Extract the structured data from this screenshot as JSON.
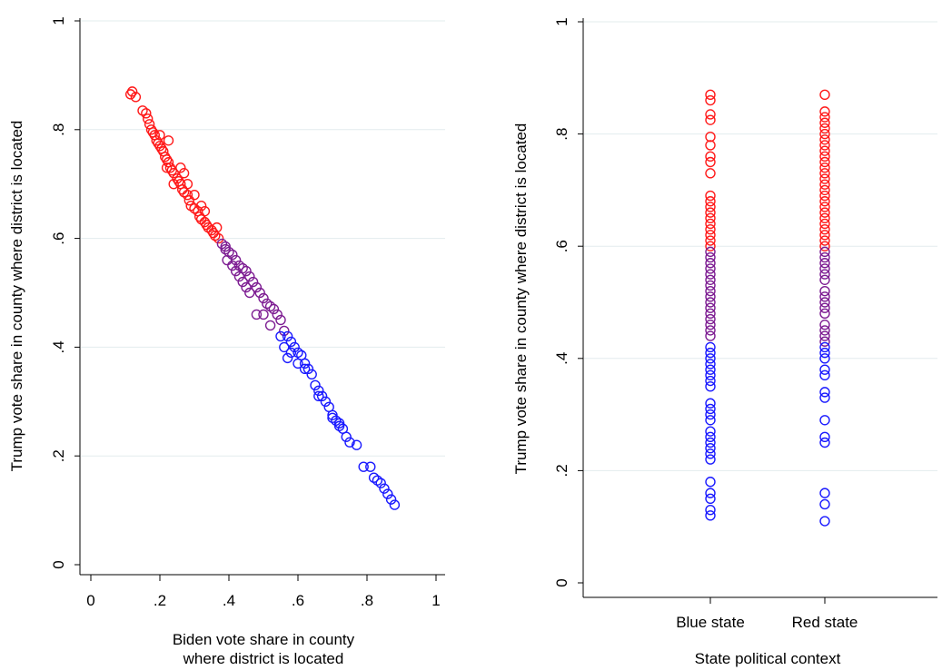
{
  "chart_data": [
    {
      "type": "scatter",
      "panel": "left",
      "xlabel_lines": [
        "Biden vote share in county",
        "where district is located"
      ],
      "ylabel": "Trump vote share in county where district is located",
      "xlim": [
        0,
        1
      ],
      "ylim": [
        0,
        1
      ],
      "xticks": [
        0,
        0.2,
        0.4,
        0.6,
        0.8,
        1
      ],
      "xtick_labels": [
        "0",
        ".2",
        ".4",
        ".6",
        ".8",
        "1"
      ],
      "yticks": [
        0,
        0.2,
        0.4,
        0.6,
        0.8,
        1
      ],
      "ytick_labels": [
        "0",
        ".2",
        ".4",
        ".6",
        ".8",
        "1"
      ],
      "grid": "horizontal",
      "marker": "hollow-circle",
      "color_rule": {
        "red_above": 0.6,
        "purple_between": [
          0.43,
          0.6
        ],
        "blue_below": 0.43
      },
      "colors": {
        "red": "#ff1a1a",
        "purple": "#7d1d92",
        "blue": "#1a1aff"
      },
      "points": [
        [
          0.12,
          0.87
        ],
        [
          0.13,
          0.86
        ],
        [
          0.115,
          0.865
        ],
        [
          0.15,
          0.835
        ],
        [
          0.16,
          0.83
        ],
        [
          0.165,
          0.82
        ],
        [
          0.17,
          0.81
        ],
        [
          0.175,
          0.8
        ],
        [
          0.18,
          0.795
        ],
        [
          0.185,
          0.79
        ],
        [
          0.19,
          0.78
        ],
        [
          0.195,
          0.775
        ],
        [
          0.2,
          0.77
        ],
        [
          0.205,
          0.765
        ],
        [
          0.21,
          0.76
        ],
        [
          0.215,
          0.75
        ],
        [
          0.22,
          0.745
        ],
        [
          0.225,
          0.74
        ],
        [
          0.23,
          0.73
        ],
        [
          0.235,
          0.725
        ],
        [
          0.24,
          0.72
        ],
        [
          0.25,
          0.71
        ],
        [
          0.255,
          0.705
        ],
        [
          0.26,
          0.7
        ],
        [
          0.265,
          0.69
        ],
        [
          0.27,
          0.685
        ],
        [
          0.28,
          0.68
        ],
        [
          0.285,
          0.67
        ],
        [
          0.29,
          0.66
        ],
        [
          0.3,
          0.655
        ],
        [
          0.31,
          0.65
        ],
        [
          0.315,
          0.64
        ],
        [
          0.32,
          0.635
        ],
        [
          0.33,
          0.63
        ],
        [
          0.335,
          0.625
        ],
        [
          0.34,
          0.62
        ],
        [
          0.35,
          0.615
        ],
        [
          0.355,
          0.61
        ],
        [
          0.36,
          0.605
        ],
        [
          0.365,
          0.62
        ],
        [
          0.225,
          0.78
        ],
        [
          0.26,
          0.73
        ],
        [
          0.28,
          0.7
        ],
        [
          0.3,
          0.68
        ],
        [
          0.32,
          0.66
        ],
        [
          0.2,
          0.79
        ],
        [
          0.33,
          0.65
        ],
        [
          0.24,
          0.7
        ],
        [
          0.27,
          0.72
        ],
        [
          0.22,
          0.73
        ],
        [
          0.37,
          0.6
        ],
        [
          0.38,
          0.59
        ],
        [
          0.39,
          0.58
        ],
        [
          0.4,
          0.575
        ],
        [
          0.41,
          0.57
        ],
        [
          0.42,
          0.56
        ],
        [
          0.43,
          0.55
        ],
        [
          0.44,
          0.545
        ],
        [
          0.45,
          0.54
        ],
        [
          0.46,
          0.53
        ],
        [
          0.47,
          0.52
        ],
        [
          0.48,
          0.51
        ],
        [
          0.49,
          0.5
        ],
        [
          0.5,
          0.49
        ],
        [
          0.51,
          0.48
        ],
        [
          0.52,
          0.475
        ],
        [
          0.53,
          0.47
        ],
        [
          0.54,
          0.46
        ],
        [
          0.55,
          0.45
        ],
        [
          0.395,
          0.56
        ],
        [
          0.42,
          0.54
        ],
        [
          0.45,
          0.51
        ],
        [
          0.48,
          0.46
        ],
        [
          0.5,
          0.46
        ],
        [
          0.43,
          0.53
        ],
        [
          0.41,
          0.55
        ],
        [
          0.52,
          0.44
        ],
        [
          0.46,
          0.5
        ],
        [
          0.39,
          0.585
        ],
        [
          0.44,
          0.52
        ],
        [
          0.56,
          0.43
        ],
        [
          0.57,
          0.42
        ],
        [
          0.58,
          0.41
        ],
        [
          0.59,
          0.4
        ],
        [
          0.6,
          0.39
        ],
        [
          0.61,
          0.385
        ],
        [
          0.62,
          0.37
        ],
        [
          0.63,
          0.36
        ],
        [
          0.64,
          0.35
        ],
        [
          0.65,
          0.33
        ],
        [
          0.66,
          0.32
        ],
        [
          0.67,
          0.31
        ],
        [
          0.68,
          0.3
        ],
        [
          0.69,
          0.29
        ],
        [
          0.7,
          0.275
        ],
        [
          0.71,
          0.265
        ],
        [
          0.72,
          0.26
        ],
        [
          0.73,
          0.25
        ],
        [
          0.74,
          0.235
        ],
        [
          0.75,
          0.225
        ],
        [
          0.77,
          0.22
        ],
        [
          0.56,
          0.4
        ],
        [
          0.58,
          0.39
        ],
        [
          0.6,
          0.37
        ],
        [
          0.62,
          0.36
        ],
        [
          0.66,
          0.31
        ],
        [
          0.7,
          0.27
        ],
        [
          0.72,
          0.255
        ],
        [
          0.55,
          0.42
        ],
        [
          0.57,
          0.38
        ],
        [
          0.79,
          0.18
        ],
        [
          0.81,
          0.18
        ],
        [
          0.82,
          0.16
        ],
        [
          0.83,
          0.155
        ],
        [
          0.84,
          0.15
        ],
        [
          0.85,
          0.14
        ],
        [
          0.86,
          0.13
        ],
        [
          0.87,
          0.12
        ],
        [
          0.88,
          0.11
        ]
      ]
    },
    {
      "type": "scatter",
      "panel": "right",
      "xlabel": "State political context",
      "ylabel": "Trump vote share in county where district is located",
      "categories": [
        "Blue state",
        "Red state"
      ],
      "ylim": [
        0,
        1
      ],
      "yticks": [
        0,
        0.2,
        0.4,
        0.6,
        0.8,
        1
      ],
      "ytick_labels": [
        "0",
        ".2",
        ".4",
        ".6",
        ".8",
        "1"
      ],
      "grid": "horizontal",
      "marker": "hollow-circle",
      "color_rule": {
        "red_above": 0.6,
        "purple_between": [
          0.43,
          0.6
        ],
        "blue_below": 0.43
      },
      "colors": {
        "red": "#ff1a1a",
        "purple": "#7d1d92",
        "blue": "#1a1aff"
      },
      "series": [
        {
          "category": "Blue state",
          "values": [
            0.87,
            0.86,
            0.835,
            0.825,
            0.795,
            0.78,
            0.76,
            0.75,
            0.73,
            0.69,
            0.68,
            0.67,
            0.66,
            0.65,
            0.64,
            0.63,
            0.62,
            0.61,
            0.6,
            0.59,
            0.58,
            0.57,
            0.56,
            0.55,
            0.54,
            0.53,
            0.52,
            0.51,
            0.5,
            0.49,
            0.48,
            0.47,
            0.46,
            0.45,
            0.44,
            0.42,
            0.41,
            0.4,
            0.39,
            0.38,
            0.37,
            0.36,
            0.35,
            0.32,
            0.31,
            0.3,
            0.29,
            0.27,
            0.26,
            0.25,
            0.24,
            0.23,
            0.22,
            0.18,
            0.16,
            0.15,
            0.13,
            0.12
          ]
        },
        {
          "category": "Red state",
          "values": [
            0.87,
            0.84,
            0.83,
            0.82,
            0.81,
            0.8,
            0.79,
            0.78,
            0.77,
            0.76,
            0.75,
            0.74,
            0.73,
            0.72,
            0.71,
            0.7,
            0.69,
            0.68,
            0.67,
            0.66,
            0.65,
            0.64,
            0.63,
            0.62,
            0.61,
            0.6,
            0.59,
            0.58,
            0.57,
            0.56,
            0.55,
            0.54,
            0.52,
            0.51,
            0.5,
            0.49,
            0.48,
            0.46,
            0.45,
            0.44,
            0.43,
            0.42,
            0.41,
            0.4,
            0.38,
            0.37,
            0.34,
            0.33,
            0.29,
            0.26,
            0.25,
            0.16,
            0.14,
            0.11
          ]
        }
      ]
    }
  ]
}
